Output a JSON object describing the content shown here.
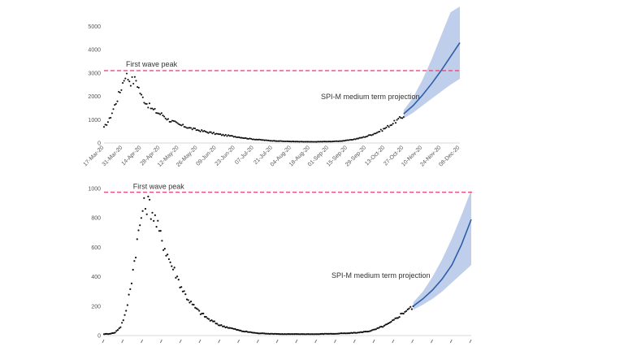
{
  "chart_data": [
    {
      "type": "scatter",
      "title": "",
      "xlabel": "",
      "ylabel": "",
      "ylim": [
        0,
        5500
      ],
      "yticks": [
        0,
        1000,
        2000,
        3000,
        4000,
        5000
      ],
      "xtick_labels": [
        "17-Mar-20",
        "31-Mar-20",
        "14-Apr-20",
        "28-Apr-20",
        "12-May-20",
        "26-May-20",
        "09-Jun-20",
        "23-Jun-20",
        "07-Jul-20",
        "21-Jul-20",
        "04-Aug-20",
        "18-Aug-20",
        "01-Sep-20",
        "15-Sep-20",
        "29-Sep-20",
        "13-Oct-20",
        "27-Oct-20",
        "10-Nov-20",
        "24-Nov-20",
        "08-Dec-20"
      ],
      "grid": false,
      "first_wave_peak": {
        "label": "First wave peak",
        "value": 3100,
        "color": "#e0507a"
      },
      "projection": {
        "label": "SPI-M medium term projection",
        "color": "#2f5ea8",
        "band_color": "#b4c6e7",
        "x": [
          "27-Oct-20",
          "03-Nov-20",
          "10-Nov-20",
          "17-Nov-20",
          "24-Nov-20",
          "01-Dec-20",
          "08-Dec-20"
        ],
        "central": [
          1250,
          1600,
          2050,
          2550,
          3100,
          3700,
          4300
        ],
        "lower": [
          1050,
          1300,
          1600,
          1900,
          2200,
          2500,
          2750
        ],
        "upper": [
          1400,
          1950,
          2700,
          3600,
          4600,
          5600,
          6600
        ]
      },
      "observed": {
        "x": [
          "17-Mar-20",
          "21-Mar-20",
          "25-Mar-20",
          "29-Mar-20",
          "02-Apr-20",
          "06-Apr-20",
          "10-Apr-20",
          "14-Apr-20",
          "18-Apr-20",
          "22-Apr-20",
          "26-Apr-20",
          "30-Apr-20",
          "04-May-20",
          "08-May-20",
          "12-May-20",
          "16-May-20",
          "20-May-20",
          "24-May-20",
          "28-May-20",
          "01-Jun-20",
          "05-Jun-20",
          "09-Jun-20",
          "13-Jun-20",
          "17-Jun-20",
          "21-Jun-20",
          "25-Jun-20",
          "29-Jun-20",
          "03-Jul-20",
          "07-Jul-20",
          "11-Jul-20",
          "15-Jul-20",
          "19-Jul-20",
          "23-Jul-20",
          "27-Jul-20",
          "31-Jul-20",
          "04-Aug-20",
          "08-Aug-20",
          "12-Aug-20",
          "16-Aug-20",
          "20-Aug-20",
          "24-Aug-20",
          "28-Aug-20",
          "01-Sep-20",
          "05-Sep-20",
          "09-Sep-20",
          "13-Sep-20",
          "17-Sep-20",
          "21-Sep-20",
          "25-Sep-20",
          "29-Sep-20",
          "03-Oct-20",
          "07-Oct-20",
          "11-Oct-20",
          "15-Oct-20",
          "19-Oct-20",
          "23-Oct-20",
          "27-Oct-20"
        ],
        "y": [
          650,
          1000,
          1600,
          2200,
          2950,
          2650,
          2700,
          2000,
          1700,
          1450,
          1300,
          1200,
          1000,
          900,
          780,
          720,
          640,
          580,
          530,
          480,
          440,
          390,
          350,
          320,
          290,
          260,
          220,
          190,
          160,
          140,
          120,
          100,
          90,
          80,
          70,
          65,
          60,
          55,
          55,
          50,
          55,
          60,
          60,
          70,
          80,
          100,
          130,
          170,
          220,
          280,
          360,
          450,
          560,
          700,
          850,
          1000,
          1150
        ]
      }
    },
    {
      "type": "scatter",
      "title": "",
      "xlabel": "",
      "ylabel": "",
      "ylim": [
        0,
        1000
      ],
      "yticks": [
        0,
        200,
        400,
        600,
        800,
        1000
      ],
      "grid": false,
      "first_wave_peak": {
        "label": "First wave peak",
        "value": 975,
        "color": "#e0507a"
      },
      "projection": {
        "label": "SPI-M medium term projection",
        "color": "#2f5ea8",
        "band_color": "#b4c6e7",
        "x": [
          "27-Oct-20",
          "03-Nov-20",
          "10-Nov-20",
          "17-Nov-20",
          "24-Nov-20",
          "01-Dec-20",
          "08-Dec-20"
        ],
        "central": [
          200,
          250,
          310,
          385,
          480,
          620,
          790
        ],
        "lower": [
          175,
          210,
          250,
          300,
          360,
          420,
          480
        ],
        "upper": [
          225,
          300,
          400,
          520,
          660,
          820,
          990
        ]
      },
      "observed": {
        "x": [
          "17-Mar-20",
          "21-Mar-20",
          "25-Mar-20",
          "29-Mar-20",
          "02-Apr-20",
          "06-Apr-20",
          "10-Apr-20",
          "14-Apr-20",
          "18-Apr-20",
          "22-Apr-20",
          "26-Apr-20",
          "30-Apr-20",
          "04-May-20",
          "08-May-20",
          "12-May-20",
          "16-May-20",
          "20-May-20",
          "24-May-20",
          "28-May-20",
          "01-Jun-20",
          "05-Jun-20",
          "09-Jun-20",
          "13-Jun-20",
          "17-Jun-20",
          "21-Jun-20",
          "25-Jun-20",
          "29-Jun-20",
          "03-Jul-20",
          "07-Jul-20",
          "11-Jul-20",
          "15-Jul-20",
          "19-Jul-20",
          "23-Jul-20",
          "27-Jul-20",
          "31-Jul-20",
          "04-Aug-20",
          "08-Aug-20",
          "12-Aug-20",
          "16-Aug-20",
          "20-Aug-20",
          "24-Aug-20",
          "28-Aug-20",
          "01-Sep-20",
          "05-Sep-20",
          "09-Sep-20",
          "13-Sep-20",
          "17-Sep-20",
          "21-Sep-20",
          "25-Sep-20",
          "29-Sep-20",
          "03-Oct-20",
          "07-Oct-20",
          "11-Oct-20",
          "15-Oct-20",
          "19-Oct-20",
          "23-Oct-20",
          "27-Oct-20"
        ],
        "y": [
          10,
          12,
          20,
          60,
          160,
          380,
          640,
          860,
          900,
          820,
          700,
          600,
          500,
          420,
          330,
          260,
          210,
          170,
          140,
          110,
          90,
          70,
          60,
          50,
          40,
          30,
          25,
          20,
          15,
          15,
          12,
          12,
          10,
          10,
          10,
          10,
          10,
          10,
          10,
          10,
          12,
          12,
          12,
          15,
          15,
          18,
          20,
          25,
          30,
          40,
          55,
          70,
          90,
          120,
          150,
          180,
          190
        ]
      }
    }
  ]
}
